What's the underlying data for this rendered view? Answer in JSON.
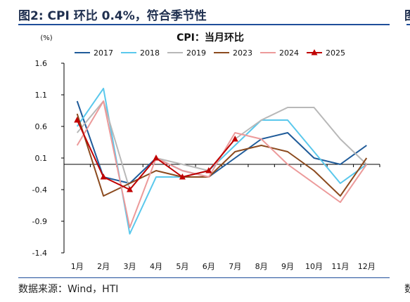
{
  "figure": {
    "title": "图2: CPI 环比 0.4%，符合季节性",
    "source": "数据来源：Wind，HTI",
    "edge_title_glyph": "图",
    "edge_source_glyph": "数"
  },
  "colors": {
    "accent_rule": "#1f4e9a",
    "axis": "#000000"
  },
  "chart_data": {
    "type": "line",
    "title": "CPI：当月环比",
    "unit_label": "(%)",
    "categories": [
      "1月",
      "2月",
      "3月",
      "4月",
      "5月",
      "6月",
      "7月",
      "8月",
      "9月",
      "10月",
      "11月",
      "12月"
    ],
    "ylim": [
      -1.4,
      1.6
    ],
    "yticks": [
      1.6,
      1.1,
      0.6,
      0.1,
      -0.4,
      -0.9,
      -1.4
    ],
    "ytick_labels": [
      "1.6",
      "1.1",
      "0.6",
      "0.1",
      "-0.4",
      "-0.9",
      "-1.4"
    ],
    "grid": false,
    "legend_position": "top",
    "series": [
      {
        "name": "2017",
        "color": "#1f5b99",
        "marker": "none",
        "values": [
          1.0,
          -0.2,
          -0.3,
          0.1,
          -0.1,
          -0.2,
          0.1,
          0.4,
          0.5,
          0.1,
          0.0,
          0.3
        ]
      },
      {
        "name": "2018",
        "color": "#5ac8ec",
        "marker": "none",
        "values": [
          0.6,
          1.2,
          -1.1,
          -0.2,
          -0.2,
          -0.1,
          0.3,
          0.7,
          0.7,
          0.2,
          -0.3,
          0.0
        ]
      },
      {
        "name": "2019",
        "color": "#b8b8b8",
        "marker": "none",
        "values": [
          0.5,
          1.0,
          -0.4,
          0.1,
          0.0,
          -0.1,
          0.4,
          0.7,
          0.9,
          0.9,
          0.4,
          0.0
        ]
      },
      {
        "name": "2023",
        "color": "#8b4a1e",
        "marker": "none",
        "values": [
          0.8,
          -0.5,
          -0.3,
          -0.1,
          -0.2,
          -0.2,
          0.2,
          0.3,
          0.2,
          -0.1,
          -0.5,
          0.1
        ]
      },
      {
        "name": "2024",
        "color": "#ec9a9a",
        "marker": "none",
        "values": [
          0.3,
          1.0,
          -1.0,
          0.1,
          -0.1,
          -0.2,
          0.5,
          0.4,
          0.0,
          -0.3,
          -0.6,
          0.0
        ]
      },
      {
        "name": "2025",
        "color": "#c00000",
        "marker": "triangle",
        "values": [
          0.7,
          -0.2,
          -0.4,
          0.1,
          -0.2,
          -0.1,
          0.4,
          null,
          null,
          null,
          null,
          null
        ]
      }
    ]
  }
}
